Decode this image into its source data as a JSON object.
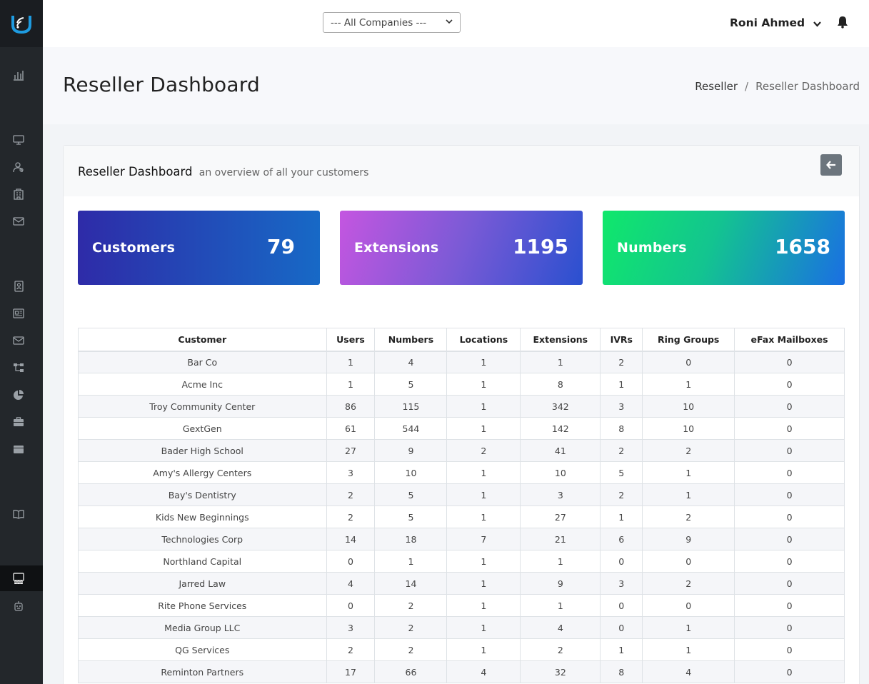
{
  "header": {
    "company_select": "--- All Companies ---",
    "user_name": "Roni Ahmed"
  },
  "page": {
    "title": "Reseller Dashboard",
    "breadcrumb": [
      "Reseller",
      "Reseller Dashboard"
    ]
  },
  "card": {
    "title": "Reseller Dashboard",
    "subtitle": "an overview of all your customers"
  },
  "stats": {
    "customers_label": "Customers",
    "customers_value": "79",
    "extensions_label": "Extensions",
    "extensions_value": "1195",
    "numbers_label": "Numbers",
    "numbers_value": "1658"
  },
  "colors": {
    "sidebar": "#23272b",
    "logo_accent": "#1e9be0",
    "customers_gradient": [
      "#2e2ba8",
      "#1769c6"
    ],
    "extensions_gradient": [
      "#c456e0",
      "#2a50cf"
    ],
    "numbers_gradient": [
      "#10e86b",
      "#1a6fe3"
    ]
  },
  "sidebar_icons": [
    "chart-bar-icon",
    "monitor-icon",
    "users-icon",
    "building-icon",
    "mail-icon",
    "address-book-icon",
    "newspaper-icon",
    "envelope-icon",
    "sitemap-icon",
    "pie-chart-icon",
    "briefcase-icon",
    "folder-icon",
    "book-icon",
    "reseller-icon",
    "robot-icon"
  ],
  "table": {
    "columns": [
      "Customer",
      "Users",
      "Numbers",
      "Locations",
      "Extensions",
      "IVRs",
      "Ring Groups",
      "eFax Mailboxes"
    ],
    "rows": [
      [
        "Bar Co",
        "1",
        "4",
        "1",
        "1",
        "2",
        "0",
        "0"
      ],
      [
        "Acme Inc",
        "1",
        "5",
        "1",
        "8",
        "1",
        "1",
        "0"
      ],
      [
        "Troy Community Center",
        "86",
        "115",
        "1",
        "342",
        "3",
        "10",
        "0"
      ],
      [
        "GextGen",
        "61",
        "544",
        "1",
        "142",
        "8",
        "10",
        "0"
      ],
      [
        "Bader High School",
        "27",
        "9",
        "2",
        "41",
        "2",
        "2",
        "0"
      ],
      [
        "Amy's Allergy Centers",
        "3",
        "10",
        "1",
        "10",
        "5",
        "1",
        "0"
      ],
      [
        "Bay's Dentistry",
        "2",
        "5",
        "1",
        "3",
        "2",
        "1",
        "0"
      ],
      [
        "Kids New Beginnings",
        "2",
        "5",
        "1",
        "27",
        "1",
        "2",
        "0"
      ],
      [
        "Technologies Corp",
        "14",
        "18",
        "7",
        "21",
        "6",
        "9",
        "0"
      ],
      [
        "Northland Capital",
        "0",
        "1",
        "1",
        "1",
        "0",
        "0",
        "0"
      ],
      [
        "Jarred Law",
        "4",
        "14",
        "1",
        "9",
        "3",
        "2",
        "0"
      ],
      [
        "Rite Phone Services",
        "0",
        "2",
        "1",
        "1",
        "0",
        "0",
        "0"
      ],
      [
        "Media Group LLC",
        "3",
        "2",
        "1",
        "4",
        "0",
        "1",
        "0"
      ],
      [
        "QG Services",
        "2",
        "2",
        "1",
        "2",
        "1",
        "1",
        "0"
      ],
      [
        "Reminton Partners",
        "17",
        "66",
        "4",
        "32",
        "8",
        "4",
        "0"
      ]
    ]
  }
}
